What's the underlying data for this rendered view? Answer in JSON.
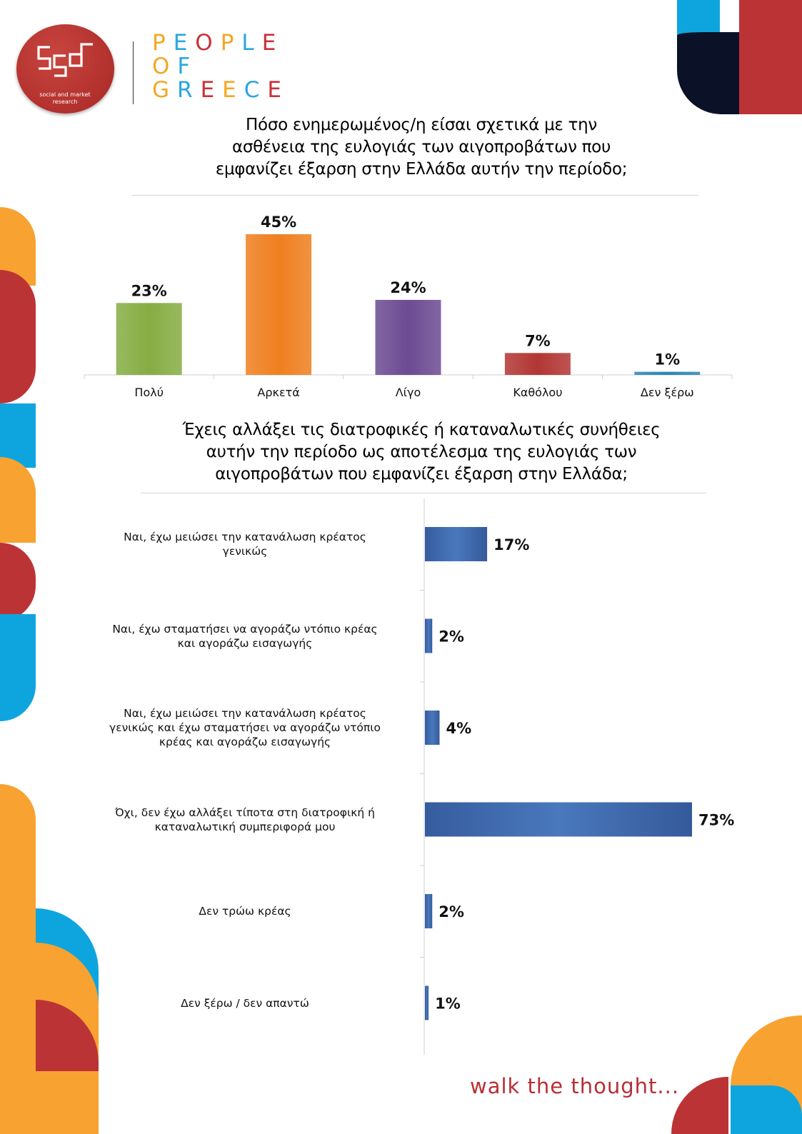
{
  "logo": {
    "mark_text": "ççd",
    "tagline": "social and market research"
  },
  "brand": {
    "line1": "PEOPLE",
    "line2": "OF",
    "line3": "GREECE",
    "letter_colors": [
      "#f5a623",
      "#2aa7de",
      "#c8323a",
      "#f5a623",
      "#2aa7de",
      "#c8323a"
    ]
  },
  "colors": {
    "orange": "#f7a231",
    "red": "#bc3336",
    "blue": "#0ea5df",
    "navy": "#0b1126"
  },
  "chart_data": [
    {
      "type": "bar",
      "title": "Πόσο ενημερωμένος/η είσαι σχετικά με την ασθένεια της ευλογιάς των αιγοπροβάτων που εμφανίζει έξαρση στην Ελλάδα αυτήν την περίοδο;",
      "title_lines": [
        "Πόσο ενημερωμένος/η είσαι σχετικά με την",
        "ασθένεια της ευλογιάς των αιγοπροβάτων που",
        "εμφανίζει έξαρση στην Ελλάδα αυτήν την περίοδο;"
      ],
      "categories": [
        "Πολύ",
        "Αρκετά",
        "Λίγο",
        "Καθόλου",
        "Δεν ξέρω"
      ],
      "values": [
        23,
        45,
        24,
        7,
        1
      ],
      "labels": [
        "23%",
        "45%",
        "24%",
        "7%",
        "1%"
      ],
      "colors": [
        "#86ad43",
        "#ef7f1f",
        "#6c4b92",
        "#b23634",
        "#2a86b4"
      ],
      "ylim": [
        0,
        45
      ],
      "xlabel": "",
      "ylabel": ""
    },
    {
      "type": "bar",
      "orientation": "horizontal",
      "title": "Έχεις αλλάξει τις διατροφικές ή καταναλωτικές συνήθειες αυτήν την περίοδο ως αποτέλεσμα της ευλογιάς των αιγοπροβάτων που εμφανίζει έξαρση στην Ελλάδα;",
      "title_lines": [
        "Έχεις αλλάξει τις διατροφικές ή καταναλωτικές συνήθειες",
        "αυτήν την περίοδο ως αποτέλεσμα της ευλογιάς των",
        "αιγοπροβάτων που εμφανίζει έξαρση στην Ελλάδα;"
      ],
      "categories": [
        [
          "Ναι, έχω μειώσει την κατανάλωση κρέατος",
          "γενικώς"
        ],
        [
          "Ναι, έχω σταματήσει να αγοράζω ντόπιο κρέας",
          "και αγοράζω εισαγωγής"
        ],
        [
          "Ναι, έχω μειώσει την κατανάλωση κρέατος",
          "γενικώς και έχω σταματήσει να αγοράζω ντόπιο",
          "κρέας και αγοράζω εισαγωγής"
        ],
        [
          "Όχι, δεν έχω αλλάξει τίποτα στη διατροφική ή",
          "καταναλωτική συμπεριφορά μου"
        ],
        [
          "Δεν τρώω κρέας"
        ],
        [
          "Δεν ξέρω / δεν απαντώ"
        ]
      ],
      "values": [
        17,
        2,
        4,
        73,
        2,
        1
      ],
      "labels": [
        "17%",
        "2%",
        "4%",
        "73%",
        "2%",
        "1%"
      ],
      "color": "#3a64a8",
      "xlim": [
        0,
        73
      ],
      "xlabel": "",
      "ylabel": ""
    }
  ],
  "footer": {
    "slogan": "walk the thought..."
  }
}
